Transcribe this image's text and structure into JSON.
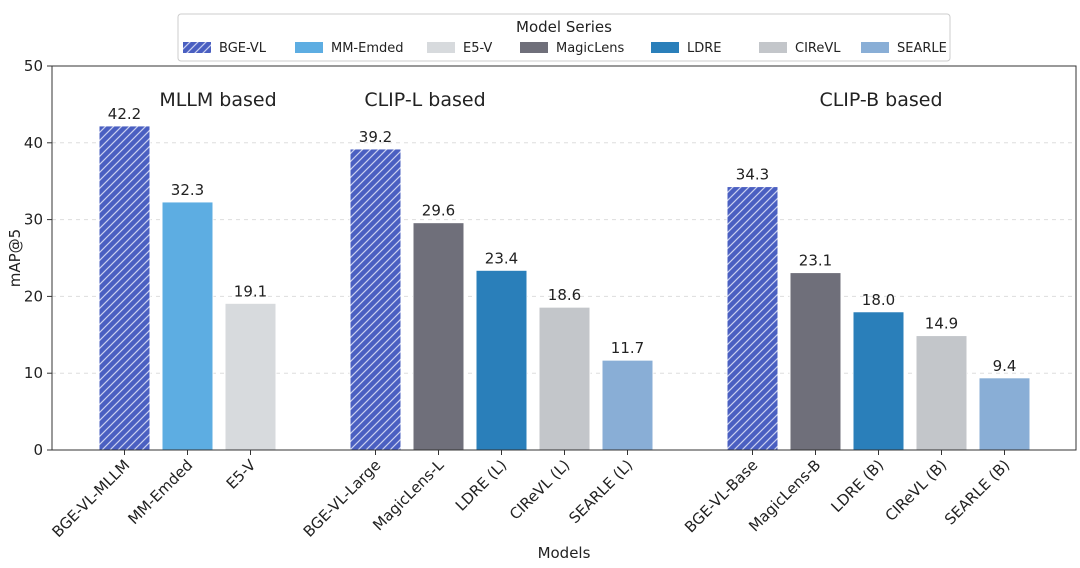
{
  "chart_data": {
    "type": "bar",
    "ylabel": "mAP@5",
    "xlabel": "Models",
    "ylim": [
      0,
      50
    ],
    "yticks": [
      0,
      10,
      20,
      30,
      40,
      50
    ],
    "grid": "horizontal-dashed",
    "legend": {
      "title": "Model Series",
      "placement": "top-center",
      "entries": [
        {
          "name": "BGE-VL",
          "color": "#4a5fc1",
          "hatch": true
        },
        {
          "name": "MM-Emded",
          "color": "#5dade2",
          "hatch": false
        },
        {
          "name": "E5-V",
          "color": "#d7dadd",
          "hatch": false
        },
        {
          "name": "MagicLens",
          "color": "#6f6f7a",
          "hatch": false
        },
        {
          "name": "LDRE",
          "color": "#2a7fba",
          "hatch": false
        },
        {
          "name": "CIReVL",
          "color": "#c3c6ca",
          "hatch": false
        },
        {
          "name": "SEARLE",
          "color": "#89aed6",
          "hatch": false
        }
      ]
    },
    "groups": [
      {
        "label": "MLLM based",
        "bars": [
          {
            "category": "BGE-VL-MLLM",
            "series": "BGE-VL",
            "value": 42.2,
            "value_label": "42.2"
          },
          {
            "category": "MM-Emded",
            "series": "MM-Emded",
            "value": 32.3,
            "value_label": "32.3"
          },
          {
            "category": "E5-V",
            "series": "E5-V",
            "value": 19.1,
            "value_label": "19.1"
          }
        ]
      },
      {
        "label": "CLIP-L based",
        "bars": [
          {
            "category": "BGE-VL-Large",
            "series": "BGE-VL",
            "value": 39.2,
            "value_label": "39.2"
          },
          {
            "category": "MagicLens-L",
            "series": "MagicLens",
            "value": 29.6,
            "value_label": "29.6"
          },
          {
            "category": "LDRE (L)",
            "series": "LDRE",
            "value": 23.4,
            "value_label": "23.4"
          },
          {
            "category": "CIReVL (L)",
            "series": "CIReVL",
            "value": 18.6,
            "value_label": "18.6"
          },
          {
            "category": "SEARLE (L)",
            "series": "SEARLE",
            "value": 11.7,
            "value_label": "11.7"
          }
        ]
      },
      {
        "label": "CLIP-B based",
        "bars": [
          {
            "category": "BGE-VL-Base",
            "series": "BGE-VL",
            "value": 34.3,
            "value_label": "34.3"
          },
          {
            "category": "MagicLens-B",
            "series": "MagicLens",
            "value": 23.1,
            "value_label": "23.1"
          },
          {
            "category": "LDRE (B)",
            "series": "LDRE",
            "value": 18.0,
            "value_label": "18.0"
          },
          {
            "category": "CIReVL (B)",
            "series": "CIReVL",
            "value": 14.9,
            "value_label": "14.9"
          },
          {
            "category": "SEARLE (B)",
            "series": "SEARLE",
            "value": 9.4,
            "value_label": "9.4"
          }
        ]
      }
    ]
  }
}
